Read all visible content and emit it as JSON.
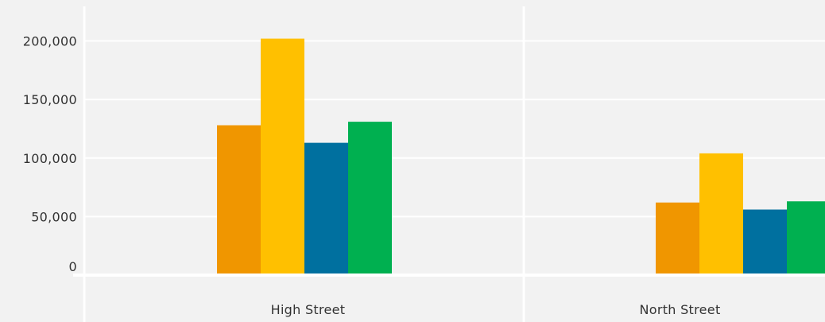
{
  "chart_data": {
    "type": "bar",
    "categories": [
      "High Street",
      "North Street"
    ],
    "series": [
      {
        "color": "#f09600",
        "values": [
          128000,
          62000
        ]
      },
      {
        "color": "#ffc000",
        "values": [
          202000,
          104000
        ]
      },
      {
        "color": "#00709f",
        "values": [
          113000,
          56000
        ]
      },
      {
        "color": "#00b050",
        "values": [
          131000,
          63000
        ]
      }
    ],
    "y_ticks": [
      0,
      50000,
      100000,
      150000,
      200000
    ],
    "y_tick_labels": [
      "0",
      "50,000",
      "100,000",
      "150,000",
      "200,000"
    ],
    "ylim": [
      0,
      235000
    ],
    "grid": true,
    "legend": "none",
    "title": "",
    "xlabel": "",
    "ylabel": ""
  },
  "colors": {
    "background": "#f2f2f2",
    "gridline": "#ffffff",
    "text": "#333333"
  }
}
